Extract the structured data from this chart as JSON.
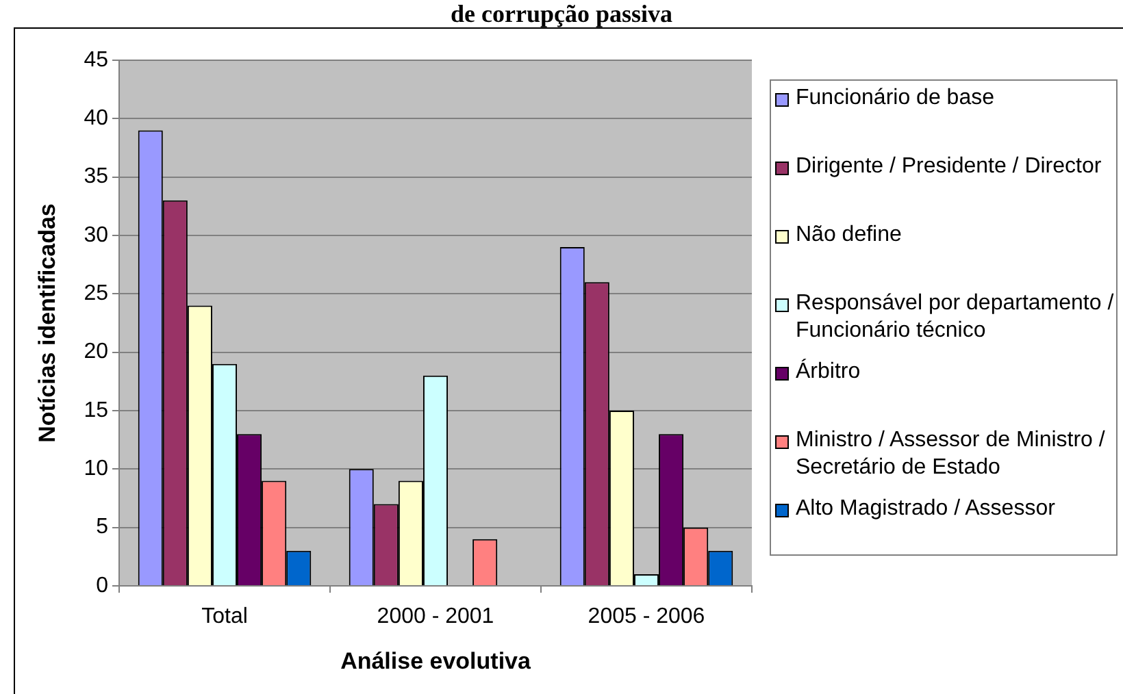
{
  "chart_data": {
    "type": "bar",
    "title": "de corrupção passiva",
    "xlabel": "Análise evolutiva",
    "ylabel": "Notícias identificadas",
    "categories": [
      "Total",
      "2000 - 2001",
      "2005 - 2006"
    ],
    "series": [
      {
        "name": "Funcionário de base",
        "color": "#9999ff",
        "values": [
          39,
          10,
          29
        ]
      },
      {
        "name": "Dirigente / Presidente / Director",
        "color": "#993366",
        "values": [
          33,
          7,
          26
        ]
      },
      {
        "name": "Não define",
        "color": "#ffffcc",
        "values": [
          24,
          9,
          15
        ]
      },
      {
        "name": "Responsável por departamento / Funcionário técnico",
        "color": "#ccffff",
        "values": [
          19,
          18,
          1
        ]
      },
      {
        "name": "Árbitro",
        "color": "#660066",
        "values": [
          13,
          0,
          13
        ]
      },
      {
        "name": "Ministro / Assessor de Ministro / Secretário de Estado",
        "color": "#ff8080",
        "values": [
          9,
          4,
          5
        ]
      },
      {
        "name": "Alto Magistrado / Assessor",
        "color": "#0066cc",
        "values": [
          3,
          0,
          3
        ]
      }
    ],
    "ylim": [
      0,
      45
    ],
    "yticks": [
      0,
      5,
      10,
      15,
      20,
      25,
      30,
      35,
      40,
      45
    ],
    "grid": "y",
    "legend": "right"
  }
}
